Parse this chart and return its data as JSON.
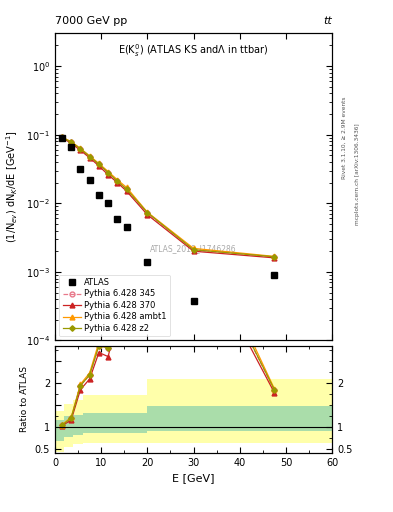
{
  "title_top": "7000 GeV pp",
  "title_top_right": "tt",
  "panel_title": "E(K$_s^0$) (ATLAS KS and$\\Lambda$ in ttbar)",
  "watermark": "ATLAS_2019_I1746286",
  "right_label": "Rivet 3.1.10, ≥ 2.9M events",
  "right_label2": "mcplots.cern.ch [arXiv:1306.3436]",
  "xlabel": "E [GeV]",
  "ylabel_top": "(1/N$_{ev}$) dN$_K$/dE [GeV$^{-1}$]",
  "ylabel_bot": "Ratio to ATLAS",
  "xlim": [
    0,
    60
  ],
  "atlas_x": [
    1.5,
    3.5,
    5.5,
    7.5,
    9.5,
    11.5,
    13.5,
    15.5,
    20.0,
    30.0,
    47.5
  ],
  "atlas_y": [
    0.088,
    0.065,
    0.032,
    0.022,
    0.013,
    0.01,
    0.0058,
    0.0045,
    0.0014,
    0.00038,
    0.0009
  ],
  "mc_x": [
    1.5,
    3.5,
    5.5,
    7.5,
    9.5,
    11.5,
    13.5,
    15.5,
    20.0,
    30.0,
    47.5
  ],
  "py345_y": [
    0.092,
    0.078,
    0.062,
    0.048,
    0.037,
    0.028,
    0.021,
    0.016,
    0.0072,
    0.0021,
    0.00165
  ],
  "py370_y": [
    0.09,
    0.075,
    0.059,
    0.046,
    0.035,
    0.026,
    0.02,
    0.015,
    0.0068,
    0.002,
    0.0016
  ],
  "pyambt1_y": [
    0.092,
    0.079,
    0.063,
    0.049,
    0.038,
    0.029,
    0.022,
    0.017,
    0.0074,
    0.0022,
    0.00168
  ],
  "pyz2_y": [
    0.091,
    0.078,
    0.062,
    0.048,
    0.037,
    0.028,
    0.021,
    0.016,
    0.0073,
    0.0021,
    0.00166
  ],
  "color_py345": "#e8788a",
  "color_py370": "#cc2222",
  "color_pyambt1": "#ff9900",
  "color_pyz2": "#999900",
  "bg_color": "#ffffff",
  "green_color": "#aaddaa",
  "yellow_color": "#ffffaa",
  "yband_x_edges": [
    0,
    2,
    4,
    6,
    8,
    10,
    12,
    14,
    20,
    25,
    45,
    60
  ],
  "yellow_lo": [
    0.42,
    0.54,
    0.6,
    0.64,
    0.64,
    0.64,
    0.64,
    0.64,
    0.64,
    0.64,
    0.64
  ],
  "yellow_hi": [
    1.35,
    1.52,
    1.62,
    1.72,
    1.72,
    1.72,
    1.72,
    1.72,
    2.08,
    2.08,
    2.08
  ],
  "green_lo": [
    0.68,
    0.76,
    0.82,
    0.86,
    0.86,
    0.86,
    0.86,
    0.86,
    0.91,
    0.91,
    0.91
  ],
  "green_hi": [
    1.16,
    1.24,
    1.28,
    1.32,
    1.32,
    1.32,
    1.32,
    1.32,
    1.48,
    1.48,
    1.48
  ]
}
